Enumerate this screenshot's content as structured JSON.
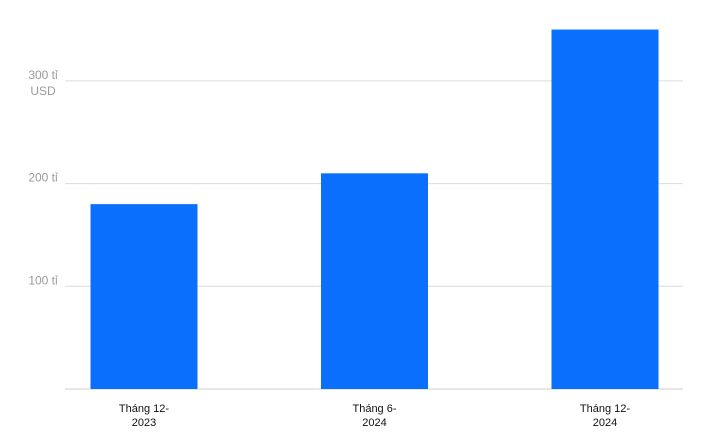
{
  "chart_data": {
    "type": "bar",
    "categories": [
      "Tháng 12-2023",
      "Tháng 6-2024",
      "Tháng 12-2024"
    ],
    "values": [
      180,
      210,
      350
    ],
    "color": "#0a6ffc",
    "ylim": [
      0,
      370
    ],
    "yticks": [
      {
        "value": 100,
        "label": "100 tỉ"
      },
      {
        "value": 200,
        "label": "200 tỉ"
      },
      {
        "value": 300,
        "label": "300 tỉ USD"
      }
    ],
    "grid": true
  }
}
